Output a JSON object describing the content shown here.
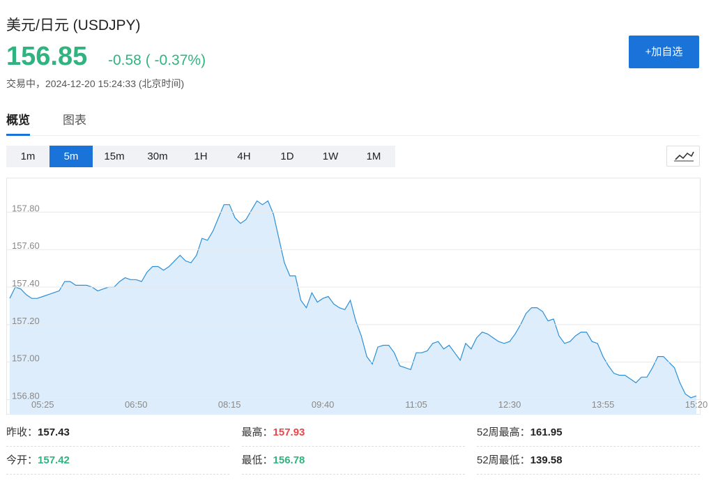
{
  "header": {
    "title": "美元/日元 (USDJPY)",
    "price": "156.85",
    "change": "-0.58 ( -0.37%)",
    "status": "交易中，2024-12-20 15:24:33 (北京时间)",
    "button": "+加自选"
  },
  "tabs": [
    "概览",
    "图表"
  ],
  "periods": [
    "1m",
    "5m",
    "15m",
    "30m",
    "1H",
    "4H",
    "1D",
    "1W",
    "1M"
  ],
  "chart_data": {
    "type": "area",
    "color": "#2a8fd8",
    "fill": "#deedfb",
    "categories": [
      null,
      null,
      null,
      null,
      null,
      null,
      "05:25",
      null,
      null,
      null,
      null,
      null,
      null,
      null,
      null,
      null,
      null,
      null,
      null,
      null,
      null,
      null,
      null,
      "06:50",
      null,
      null,
      null,
      null,
      null,
      null,
      null,
      null,
      null,
      null,
      null,
      null,
      null,
      null,
      null,
      null,
      "08:15",
      null,
      null,
      null,
      null,
      null,
      null,
      null,
      null,
      null,
      null,
      null,
      null,
      null,
      null,
      null,
      null,
      "09:40",
      null,
      null,
      null,
      null,
      null,
      null,
      null,
      null,
      null,
      null,
      null,
      null,
      null,
      null,
      null,
      null,
      "11:05",
      null,
      null,
      null,
      null,
      null,
      null,
      null,
      null,
      null,
      null,
      null,
      null,
      null,
      null,
      null,
      null,
      "12:30",
      null,
      null,
      null,
      null,
      null,
      null,
      null,
      null,
      null,
      null,
      null,
      null,
      null,
      null,
      null,
      null,
      "13:55",
      null,
      null,
      null,
      null,
      null,
      null,
      null,
      null,
      null,
      null,
      null,
      null,
      null,
      null,
      null,
      null,
      "15:20"
    ],
    "values": [
      157.34,
      157.4,
      157.39,
      157.36,
      157.34,
      157.34,
      157.35,
      157.36,
      157.37,
      157.38,
      157.43,
      157.43,
      157.41,
      157.41,
      157.41,
      157.4,
      157.38,
      157.39,
      157.4,
      157.4,
      157.43,
      157.45,
      157.44,
      157.44,
      157.43,
      157.48,
      157.51,
      157.51,
      157.49,
      157.51,
      157.54,
      157.57,
      157.54,
      157.53,
      157.57,
      157.66,
      157.65,
      157.7,
      157.77,
      157.84,
      157.84,
      157.77,
      157.74,
      157.76,
      157.81,
      157.86,
      157.84,
      157.86,
      157.79,
      157.66,
      157.53,
      157.46,
      157.46,
      157.33,
      157.29,
      157.37,
      157.32,
      157.34,
      157.35,
      157.31,
      157.29,
      157.28,
      157.33,
      157.22,
      157.14,
      157.03,
      156.99,
      157.08,
      157.09,
      157.09,
      157.05,
      156.98,
      156.97,
      156.96,
      157.05,
      157.05,
      157.06,
      157.1,
      157.11,
      157.07,
      157.09,
      157.05,
      157.01,
      157.1,
      157.07,
      157.13,
      157.16,
      157.15,
      157.13,
      157.11,
      157.1,
      157.11,
      157.15,
      157.2,
      157.26,
      157.29,
      157.29,
      157.27,
      157.22,
      157.23,
      157.14,
      157.1,
      157.11,
      157.14,
      157.16,
      157.16,
      157.11,
      157.1,
      157.03,
      156.98,
      156.94,
      156.93,
      156.93,
      156.91,
      156.89,
      156.92,
      156.92,
      156.97,
      157.03,
      157.03,
      157.0,
      156.97,
      156.89,
      156.83,
      156.81,
      156.82
    ],
    "ylim": [
      156.72,
      157.98
    ],
    "yticks": [
      {
        "value": 156.8,
        "label": "156.80"
      },
      {
        "value": 157.0,
        "label": "157.00"
      },
      {
        "value": 157.2,
        "label": "157.20"
      },
      {
        "value": 157.4,
        "label": "157.40"
      },
      {
        "value": 157.6,
        "label": "157.60"
      },
      {
        "value": 157.8,
        "label": "157.80"
      }
    ],
    "grid": true
  },
  "stats": [
    {
      "label": "昨收：",
      "value": "157.43",
      "color": "#222222"
    },
    {
      "label": "最高：",
      "value": "157.93",
      "color": "#e8464a"
    },
    {
      "label": "52周最高：",
      "value": "161.95",
      "color": "#222222"
    },
    {
      "label": "今开：",
      "value": "157.42",
      "color": "#2fb47f"
    },
    {
      "label": "最低：",
      "value": "156.78",
      "color": "#2fb47f"
    },
    {
      "label": "52周最低：",
      "value": "139.58",
      "color": "#222222"
    }
  ]
}
